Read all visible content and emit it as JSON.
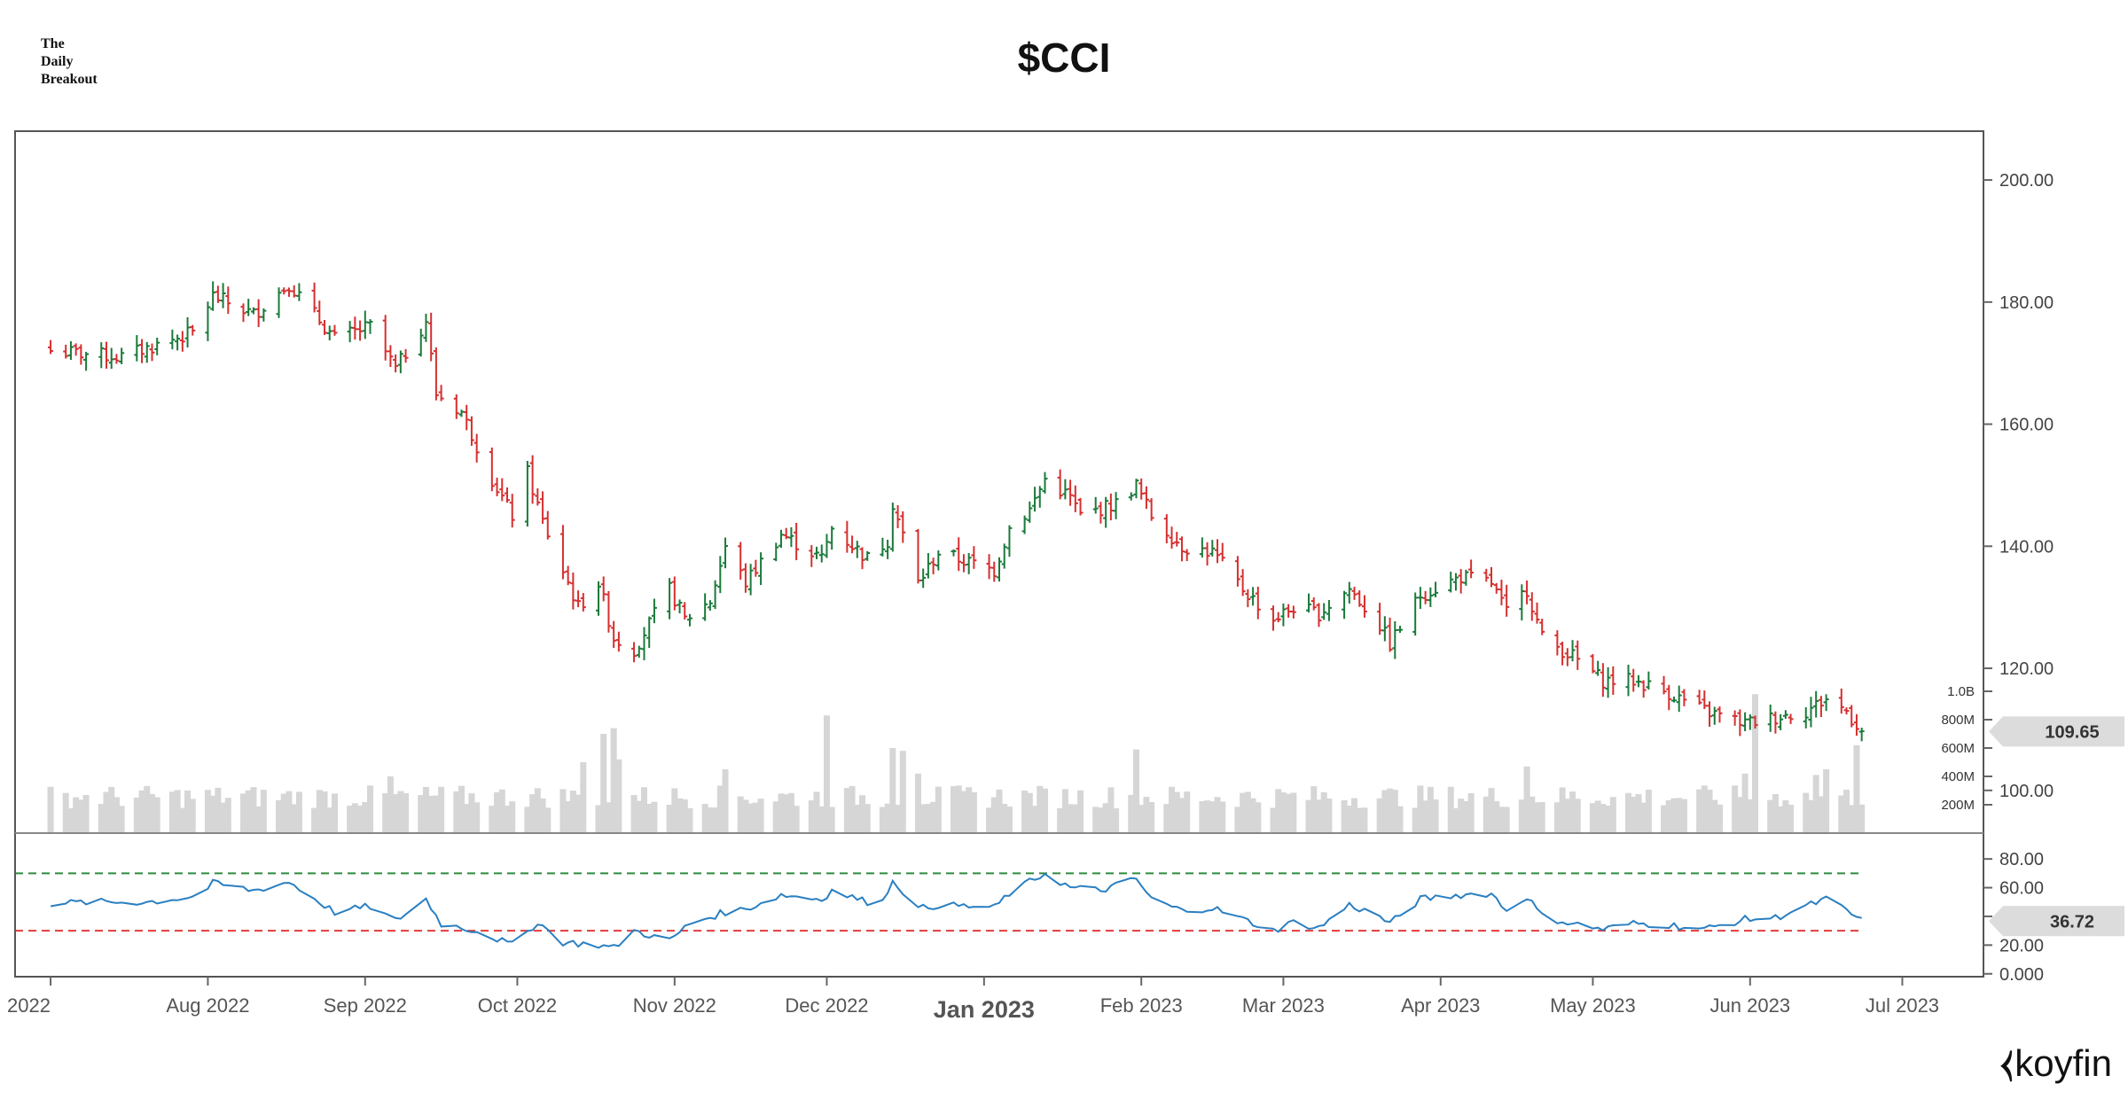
{
  "brand": {
    "line1": "The",
    "line2": "Daily",
    "line3": "Breakout"
  },
  "title": "$CCI",
  "logo": {
    "mark": "⧼",
    "text": "koyfin"
  },
  "colors": {
    "up": "#1a7a3a",
    "down": "#d62f2f",
    "volume": "#d6d6d6",
    "rsi": "#2a7fc1",
    "overbought": "#2e8b3e",
    "oversold": "#e23b3b",
    "frame": "#555555"
  },
  "chart_data": [
    {
      "type": "ohlc",
      "title": "$CCI",
      "ylim": [
        93,
        208
      ],
      "y_ticks": [
        "100.00",
        "120.00",
        "140.00",
        "160.00",
        "180.00",
        "200.00"
      ],
      "x_ticks": [
        {
          "label": "2022",
          "date": "2022-07-01"
        },
        {
          "label": "Aug 2022",
          "date": "2022-08-01"
        },
        {
          "label": "Sep 2022",
          "date": "2022-09-01"
        },
        {
          "label": "Oct 2022",
          "date": "2022-10-01"
        },
        {
          "label": "Nov 2022",
          "date": "2022-11-01"
        },
        {
          "label": "Dec 2022",
          "date": "2022-12-01"
        },
        {
          "label": "Jan 2023",
          "date": "2023-01-01",
          "major": true
        },
        {
          "label": "Feb 2023",
          "date": "2023-02-01"
        },
        {
          "label": "Mar 2023",
          "date": "2023-03-01"
        },
        {
          "label": "Apr 2023",
          "date": "2023-04-01"
        },
        {
          "label": "May 2023",
          "date": "2023-05-01"
        },
        {
          "label": "Jun 2023",
          "date": "2023-06-01"
        },
        {
          "label": "Jul 2023",
          "date": "2023-07-01"
        }
      ],
      "last_price": "109.65",
      "series": [
        {
          "close_anchors": [
            [
              "2022-07-01",
              172
            ],
            [
              "2022-07-15",
              171
            ],
            [
              "2022-07-29",
              175
            ],
            [
              "2022-08-02",
              181
            ],
            [
              "2022-08-10",
              178
            ],
            [
              "2022-08-17",
              183
            ],
            [
              "2022-08-26",
              174
            ],
            [
              "2022-09-02",
              176
            ],
            [
              "2022-09-07",
              169
            ],
            [
              "2022-09-13",
              177
            ],
            [
              "2022-09-15",
              165
            ],
            [
              "2022-09-20",
              162
            ],
            [
              "2022-09-26",
              151
            ],
            [
              "2022-09-30",
              145
            ],
            [
              "2022-10-03",
              152
            ],
            [
              "2022-10-06",
              144
            ],
            [
              "2022-10-13",
              130
            ],
            [
              "2022-10-17",
              134
            ],
            [
              "2022-10-20",
              125
            ],
            [
              "2022-10-24",
              123
            ],
            [
              "2022-10-31",
              133
            ],
            [
              "2022-11-03",
              128
            ],
            [
              "2022-11-08",
              131
            ],
            [
              "2022-11-11",
              140
            ],
            [
              "2022-11-15",
              134
            ],
            [
              "2022-11-22",
              142
            ],
            [
              "2022-11-30",
              138
            ],
            [
              "2022-12-02",
              143
            ],
            [
              "2022-12-09",
              138
            ],
            [
              "2022-12-13",
              141
            ],
            [
              "2022-12-14",
              147
            ],
            [
              "2022-12-19",
              134
            ],
            [
              "2022-12-23",
              139
            ],
            [
              "2023-01-03",
              136
            ],
            [
              "2023-01-06",
              143
            ],
            [
              "2023-01-10",
              146
            ],
            [
              "2023-01-13",
              151
            ],
            [
              "2023-01-18",
              148
            ],
            [
              "2023-01-20",
              145
            ],
            [
              "2023-01-27",
              147
            ],
            [
              "2023-01-31",
              150
            ],
            [
              "2023-02-03",
              145
            ],
            [
              "2023-02-09",
              140
            ],
            [
              "2023-02-15",
              139
            ],
            [
              "2023-02-21",
              133
            ],
            [
              "2023-02-27",
              128
            ],
            [
              "2023-03-03",
              130
            ],
            [
              "2023-03-08",
              129
            ],
            [
              "2023-03-14",
              133
            ],
            [
              "2023-03-20",
              127
            ],
            [
              "2023-03-22",
              124
            ],
            [
              "2023-03-28",
              132
            ],
            [
              "2023-04-05",
              135
            ],
            [
              "2023-04-11",
              134
            ],
            [
              "2023-04-14",
              129
            ],
            [
              "2023-04-18",
              133
            ],
            [
              "2023-04-21",
              125
            ],
            [
              "2023-04-27",
              122
            ],
            [
              "2023-05-03",
              118
            ],
            [
              "2023-05-09",
              118
            ],
            [
              "2023-05-16",
              116
            ],
            [
              "2023-05-23",
              113
            ],
            [
              "2023-05-31",
              111
            ],
            [
              "2023-06-06",
              112
            ],
            [
              "2023-06-12",
              113
            ],
            [
              "2023-06-16",
              115
            ],
            [
              "2023-06-20",
              113
            ],
            [
              "2023-06-23",
              109.65
            ]
          ]
        }
      ]
    },
    {
      "type": "bar",
      "title": "Volume",
      "y_ticks": [
        "200M",
        "400M",
        "600M",
        "800M",
        "1.0B"
      ],
      "ylim": [
        0,
        1000000000
      ],
      "typical": 250000000,
      "spikes": [
        [
          "2022-09-06",
          400000000
        ],
        [
          "2022-10-14",
          500000000
        ],
        [
          "2022-10-18",
          700000000
        ],
        [
          "2022-10-20",
          740000000
        ],
        [
          "2022-10-21",
          520000000
        ],
        [
          "2022-11-11",
          450000000
        ],
        [
          "2022-12-01",
          830000000
        ],
        [
          "2022-12-14",
          600000000
        ],
        [
          "2022-12-16",
          580000000
        ],
        [
          "2022-12-19",
          420000000
        ],
        [
          "2023-01-31",
          590000000
        ],
        [
          "2023-04-18",
          470000000
        ],
        [
          "2023-05-31",
          420000000
        ],
        [
          "2023-06-02",
          980000000
        ],
        [
          "2023-06-14",
          410000000
        ],
        [
          "2023-06-16",
          450000000
        ],
        [
          "2023-06-22",
          620000000
        ]
      ]
    },
    {
      "type": "line",
      "title": "RSI",
      "ylim": [
        -2,
        98
      ],
      "y_ticks": [
        "0.000",
        "20.00",
        "40.00",
        "60.00",
        "80.00"
      ],
      "overbought": 70,
      "oversold": 30,
      "last_value": "36.72",
      "series": [
        {
          "points": [
            [
              "2022-07-01",
              49
            ],
            [
              "2022-07-10",
              50
            ],
            [
              "2022-07-20",
              50
            ],
            [
              "2022-07-30",
              54
            ],
            [
              "2022-08-02",
              63
            ],
            [
              "2022-08-10",
              58
            ],
            [
              "2022-08-17",
              64
            ],
            [
              "2022-08-26",
              43
            ],
            [
              "2022-09-02",
              47
            ],
            [
              "2022-09-07",
              37
            ],
            [
              "2022-09-13",
              52
            ],
            [
              "2022-09-16",
              35
            ],
            [
              "2022-09-23",
              30
            ],
            [
              "2022-09-30",
              20
            ],
            [
              "2022-10-05",
              36
            ],
            [
              "2022-10-10",
              22
            ],
            [
              "2022-10-17",
              20
            ],
            [
              "2022-10-20",
              18
            ],
            [
              "2022-10-24",
              30
            ],
            [
              "2022-10-31",
              23
            ],
            [
              "2022-11-04",
              35
            ],
            [
              "2022-11-11",
              43
            ],
            [
              "2022-11-15",
              45
            ],
            [
              "2022-11-22",
              55
            ],
            [
              "2022-11-30",
              52
            ],
            [
              "2022-12-02",
              58
            ],
            [
              "2022-12-09",
              50
            ],
            [
              "2022-12-13",
              55
            ],
            [
              "2022-12-14",
              66
            ],
            [
              "2022-12-19",
              45
            ],
            [
              "2022-12-23",
              48
            ],
            [
              "2023-01-03",
              46
            ],
            [
              "2023-01-06",
              56
            ],
            [
              "2023-01-13",
              70
            ],
            [
              "2023-01-18",
              60
            ],
            [
              "2023-01-24",
              58
            ],
            [
              "2023-01-31",
              66
            ],
            [
              "2023-02-03",
              52
            ],
            [
              "2023-02-09",
              44
            ],
            [
              "2023-02-15",
              46
            ],
            [
              "2023-02-21",
              38
            ],
            [
              "2023-02-27",
              30
            ],
            [
              "2023-03-03",
              36
            ],
            [
              "2023-03-08",
              32
            ],
            [
              "2023-03-14",
              48
            ],
            [
              "2023-03-20",
              40
            ],
            [
              "2023-03-22",
              35
            ],
            [
              "2023-03-28",
              52
            ],
            [
              "2023-04-05",
              55
            ],
            [
              "2023-04-11",
              56
            ],
            [
              "2023-04-14",
              44
            ],
            [
              "2023-04-18",
              54
            ],
            [
              "2023-04-21",
              40
            ],
            [
              "2023-04-27",
              35
            ],
            [
              "2023-05-03",
              31
            ],
            [
              "2023-05-09",
              35
            ],
            [
              "2023-05-16",
              34
            ],
            [
              "2023-05-23",
              31
            ],
            [
              "2023-05-31",
              38
            ],
            [
              "2023-06-06",
              39
            ],
            [
              "2023-06-12",
              47
            ],
            [
              "2023-06-16",
              52
            ],
            [
              "2023-06-20",
              44
            ],
            [
              "2023-06-23",
              36.72
            ]
          ]
        }
      ]
    }
  ]
}
